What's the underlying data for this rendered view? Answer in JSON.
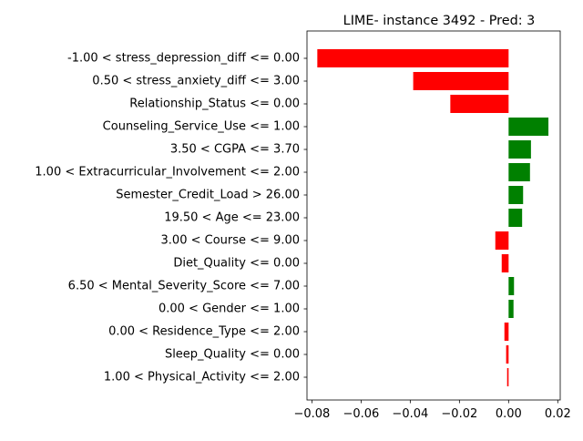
{
  "chart_data": {
    "type": "bar",
    "orientation": "horizontal",
    "title": "LIME- instance 3492 - Pred: 3",
    "xlabel": "",
    "ylabel": "",
    "xlim": [
      -0.082,
      0.021
    ],
    "grid": false,
    "x_ticks": [
      {
        "value": -0.08,
        "label": "−0.08"
      },
      {
        "value": -0.06,
        "label": "−0.06"
      },
      {
        "value": -0.04,
        "label": "−0.04"
      },
      {
        "value": -0.02,
        "label": "−0.02"
      },
      {
        "value": 0.0,
        "label": "0.00"
      },
      {
        "value": 0.02,
        "label": "0.02"
      }
    ],
    "colors": {
      "positive": "#008000",
      "negative": "#ff0000",
      "axis": "#000000"
    },
    "categories": [
      "-1.00 < stress_depression_diff <= 0.00",
      "0.50 < stress_anxiety_diff <= 3.00",
      "Relationship_Status <= 0.00",
      "Counseling_Service_Use <= 1.00",
      "3.50 < CGPA <= 3.70",
      "1.00 < Extracurricular_Involvement <= 2.00",
      "Semester_Credit_Load > 26.00",
      "19.50 < Age <= 23.00",
      "3.00 < Course <= 9.00",
      "Diet_Quality <= 0.00",
      "6.50 < Mental_Severity_Score <= 7.00",
      "0.00 < Gender <= 1.00",
      "0.00 < Residence_Type <= 2.00",
      "Sleep_Quality <= 0.00",
      "1.00 < Physical_Activity <= 2.00"
    ],
    "values": [
      -0.0778,
      -0.0388,
      -0.0237,
      0.0162,
      0.0091,
      0.0087,
      0.0059,
      0.0055,
      -0.0054,
      -0.0028,
      0.0022,
      0.002,
      -0.0017,
      -0.001,
      -0.0006
    ]
  }
}
